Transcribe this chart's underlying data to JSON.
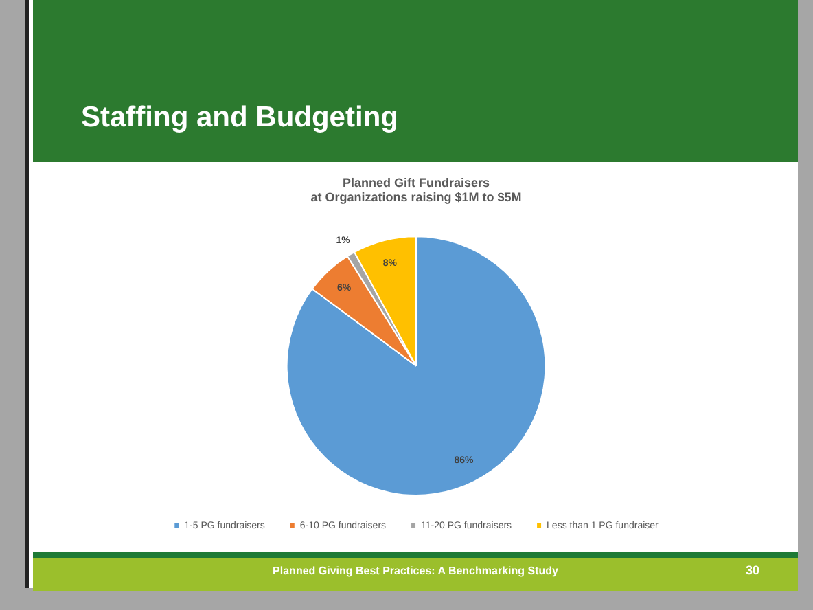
{
  "chart_data": {
    "type": "pie",
    "title": "Planned Gift Fundraisers\nat Organizations raising $1M to $5M",
    "categories": [
      "1-5 PG fundraisers",
      "6-10 PG fundraisers",
      "11-20 PG fundraisers",
      "Less than 1 PG fundraiser"
    ],
    "values": [
      86,
      6,
      1,
      8
    ],
    "colors": [
      "#5b9bd5",
      "#ed7d31",
      "#a5a5a5",
      "#ffc000"
    ],
    "value_labels": [
      "86%",
      "6%",
      "1%",
      "8%"
    ],
    "legend": "bottom",
    "annotations": [
      "Staffing and Budgeting",
      "Planned Giving Best Practices: A Benchmarking Study",
      "30"
    ]
  }
}
